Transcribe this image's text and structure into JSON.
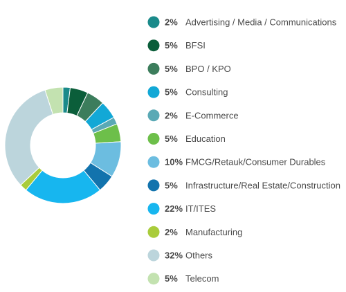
{
  "chart_data": {
    "type": "pie",
    "title": "",
    "donut": true,
    "legend_position": "right",
    "order": "clockwise-from-top",
    "slices": [
      {
        "label": "Advertising / Media / Communications",
        "value": 2,
        "pct_label": "2%",
        "color": "#1a8a8a"
      },
      {
        "label": "BFSI",
        "value": 5,
        "pct_label": "5%",
        "color": "#0b5e3a"
      },
      {
        "label": "BPO / KPO",
        "value": 5,
        "pct_label": "5%",
        "color": "#3c7d5c"
      },
      {
        "label": "Consulting",
        "value": 5,
        "pct_label": "5%",
        "color": "#12a8d6"
      },
      {
        "label": "E-Commerce",
        "value": 2,
        "pct_label": "2%",
        "color": "#5aa9b5"
      },
      {
        "label": "Education",
        "value": 5,
        "pct_label": "5%",
        "color": "#6dbf4a"
      },
      {
        "label": "FMCG/Retauk/Consumer Durables",
        "value": 10,
        "pct_label": "10%",
        "color": "#6cbde0"
      },
      {
        "label": "Infrastructure/Real Estate/Construction",
        "value": 5,
        "pct_label": "5%",
        "color": "#1273ad"
      },
      {
        "label": "IT/ITES",
        "value": 22,
        "pct_label": "22%",
        "color": "#17b6ef"
      },
      {
        "label": "Manufacturing",
        "value": 2,
        "pct_label": "2%",
        "color": "#a9cc3b"
      },
      {
        "label": "Others",
        "value": 32,
        "pct_label": "32%",
        "color": "#bcd5dc"
      },
      {
        "label": "Telecom",
        "value": 5,
        "pct_label": "5%",
        "color": "#c3e2b0"
      }
    ]
  }
}
